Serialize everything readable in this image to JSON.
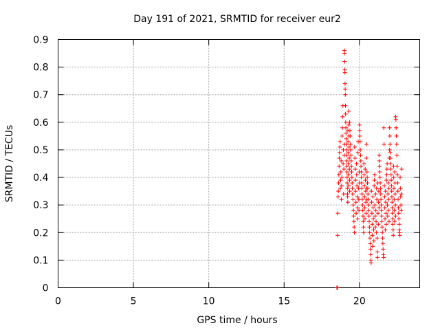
{
  "chart_data": {
    "type": "scatter",
    "title": "Day 191 of 2021, SRMTID for receiver eur2",
    "xlabel": "GPS time / hours",
    "ylabel": "SRMTID / TECUs",
    "xlim": [
      0,
      24
    ],
    "ylim": [
      0,
      0.9
    ],
    "xticks": [
      "0",
      "5",
      "10",
      "15",
      "20"
    ],
    "yticks": [
      "0",
      "0.1",
      "0.2",
      "0.3",
      "0.4",
      "0.5",
      "0.6",
      "0.7",
      "0.8",
      "0.9"
    ],
    "grid": true,
    "marker": "+",
    "color": "#ff0000",
    "clusters": [
      {
        "x_start": 18.5,
        "x_end": 18.55,
        "y": [
          0.0,
          0.0,
          0.0,
          0.0
        ]
      },
      {
        "x_start": 18.55,
        "x_end": 19.0,
        "y": [
          0.19,
          0.27,
          0.33,
          0.35,
          0.38,
          0.41,
          0.44,
          0.47,
          0.49,
          0.51,
          0.53,
          0.36,
          0.39,
          0.42,
          0.46,
          0.32,
          0.37,
          0.4,
          0.55,
          0.58,
          0.62,
          0.66,
          0.45,
          0.5,
          0.34,
          0.43,
          0.48,
          0.52
        ]
      },
      {
        "x_start": 19.0,
        "x_end": 19.35,
        "y": [
          0.86,
          0.85,
          0.82,
          0.79,
          0.78,
          0.74,
          0.72,
          0.7,
          0.66,
          0.63,
          0.6,
          0.58,
          0.56,
          0.54,
          0.52,
          0.5,
          0.48,
          0.46,
          0.44,
          0.42,
          0.4,
          0.38,
          0.36,
          0.34,
          0.33,
          0.31,
          0.57,
          0.53,
          0.49,
          0.45,
          0.41,
          0.37,
          0.64,
          0.59,
          0.55,
          0.51,
          0.47,
          0.43,
          0.39,
          0.35
        ]
      },
      {
        "x_start": 19.35,
        "x_end": 20.0,
        "y": [
          0.6,
          0.57,
          0.55,
          0.52,
          0.5,
          0.48,
          0.46,
          0.44,
          0.42,
          0.4,
          0.38,
          0.36,
          0.34,
          0.32,
          0.3,
          0.28,
          0.26,
          0.24,
          0.22,
          0.2,
          0.51,
          0.47,
          0.43,
          0.39,
          0.35,
          0.31,
          0.27,
          0.45,
          0.41,
          0.37,
          0.33,
          0.29,
          0.25,
          0.49,
          0.53,
          0.36,
          0.32,
          0.28,
          0.42,
          0.38
        ]
      },
      {
        "x_start": 20.0,
        "x_end": 20.5,
        "y": [
          0.59,
          0.57,
          0.55,
          0.53,
          0.5,
          0.48,
          0.46,
          0.44,
          0.42,
          0.4,
          0.38,
          0.36,
          0.34,
          0.32,
          0.3,
          0.28,
          0.26,
          0.24,
          0.22,
          0.2,
          0.45,
          0.41,
          0.37,
          0.33,
          0.29,
          0.25,
          0.43,
          0.39,
          0.35,
          0.31,
          0.27,
          0.47,
          0.52,
          0.36,
          0.32
        ]
      },
      {
        "x_start": 20.5,
        "x_end": 21.3,
        "y": [
          0.42,
          0.4,
          0.38,
          0.36,
          0.34,
          0.32,
          0.3,
          0.28,
          0.26,
          0.24,
          0.22,
          0.2,
          0.18,
          0.16,
          0.14,
          0.12,
          0.1,
          0.09,
          0.35,
          0.31,
          0.27,
          0.23,
          0.19,
          0.15,
          0.33,
          0.29,
          0.25,
          0.21,
          0.17,
          0.37,
          0.39,
          0.41,
          0.3,
          0.26,
          0.22,
          0.34,
          0.28,
          0.24,
          0.2,
          0.36,
          0.32,
          0.18,
          0.13,
          0.11,
          0.38,
          0.27,
          0.23,
          0.31,
          0.35,
          0.29
        ]
      },
      {
        "x_start": 21.3,
        "x_end": 22.0,
        "y": [
          0.48,
          0.46,
          0.44,
          0.42,
          0.4,
          0.38,
          0.36,
          0.34,
          0.32,
          0.3,
          0.28,
          0.26,
          0.24,
          0.22,
          0.2,
          0.18,
          0.16,
          0.14,
          0.12,
          0.11,
          0.58,
          0.52,
          0.37,
          0.33,
          0.29,
          0.25,
          0.21,
          0.35,
          0.31,
          0.27,
          0.23,
          0.39,
          0.41,
          0.43,
          0.45,
          0.3,
          0.26,
          0.34,
          0.38,
          0.28,
          0.32,
          0.36,
          0.24,
          0.47,
          0.5
        ]
      },
      {
        "x_start": 22.0,
        "x_end": 22.4,
        "y": [
          0.58,
          0.55,
          0.52,
          0.49,
          0.47,
          0.45,
          0.43,
          0.41,
          0.39,
          0.37,
          0.35,
          0.33,
          0.31,
          0.29,
          0.27,
          0.25,
          0.23,
          0.21,
          0.19,
          0.44,
          0.4,
          0.36,
          0.32,
          0.28,
          0.24,
          0.42,
          0.38,
          0.34,
          0.3,
          0.26
        ]
      },
      {
        "x_start": 22.4,
        "x_end": 22.8,
        "y": [
          0.62,
          0.61,
          0.58,
          0.55,
          0.52,
          0.48,
          0.44,
          0.41,
          0.38,
          0.35,
          0.32,
          0.29,
          0.27,
          0.25,
          0.23,
          0.21,
          0.2,
          0.19,
          0.4,
          0.36,
          0.33,
          0.3,
          0.28,
          0.34,
          0.43
        ]
      }
    ]
  }
}
